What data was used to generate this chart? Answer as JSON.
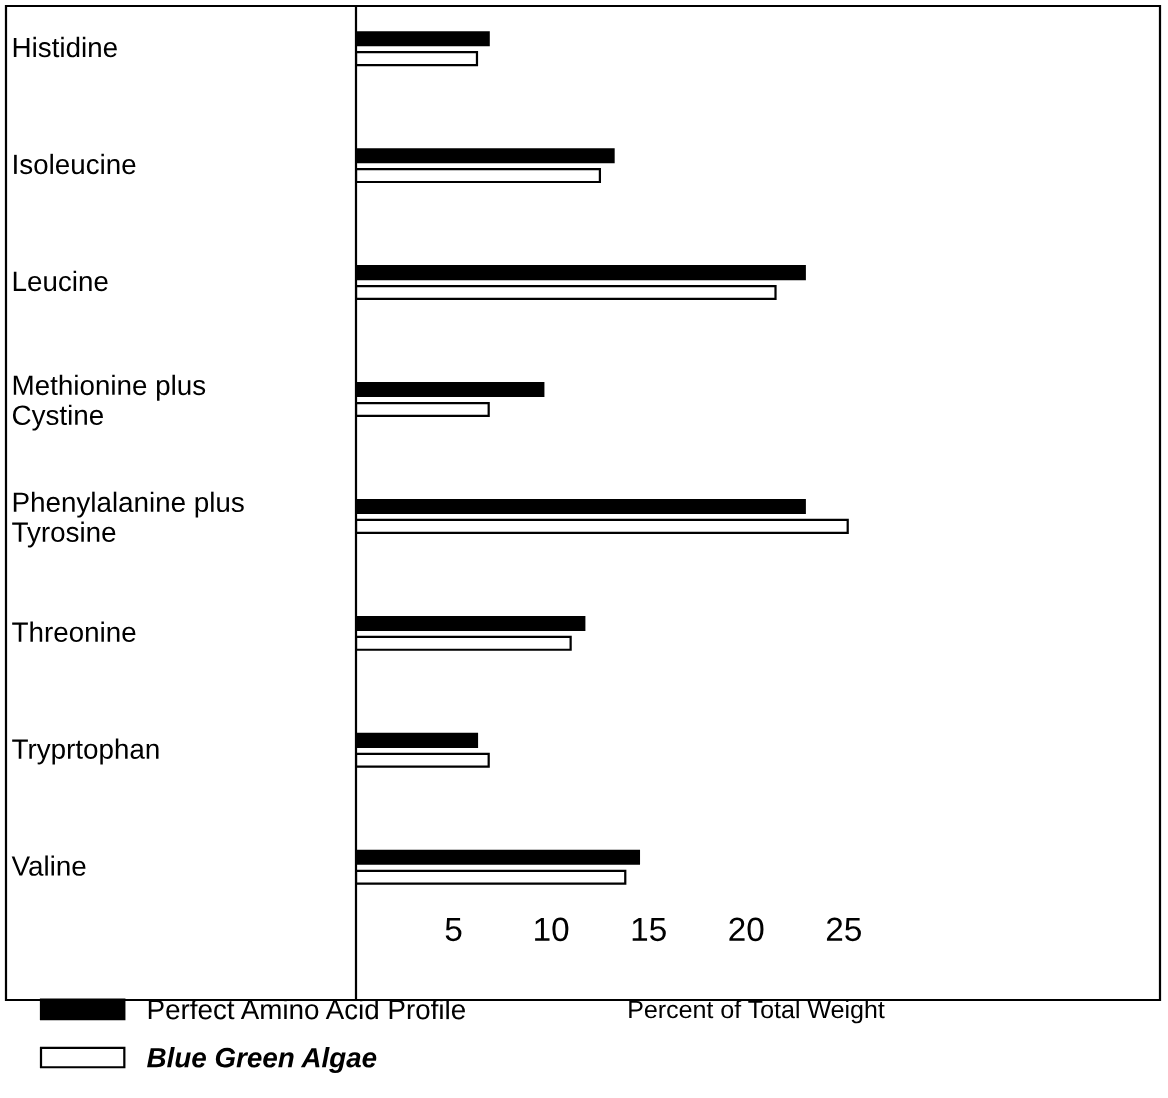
{
  "chart_data": {
    "type": "bar",
    "orientation": "horizontal",
    "xlabel": "Percent of Total Weight",
    "categories": [
      "Histidine",
      "Isoleucine",
      "Leucine",
      "Methionine plus\nCystine",
      "Phenylalanine plus\nTyrosine",
      "Threonine",
      "Tryprtophan",
      "Valine"
    ],
    "series": [
      {
        "name": "Perfect Amino Acid Profile",
        "color": "#000000",
        "values": [
          6.8,
          13.2,
          23.0,
          9.6,
          23.0,
          11.7,
          6.2,
          14.5
        ]
      },
      {
        "name": "Blue Green Algae",
        "color": "#ffffff",
        "values": [
          6.2,
          12.5,
          21.5,
          6.8,
          25.2,
          11.0,
          6.8,
          13.8
        ]
      }
    ],
    "xlim": [
      0,
      41
    ],
    "xticks": [
      5,
      10,
      15,
      20,
      25
    ],
    "grid": false,
    "legend": "bottom left"
  }
}
